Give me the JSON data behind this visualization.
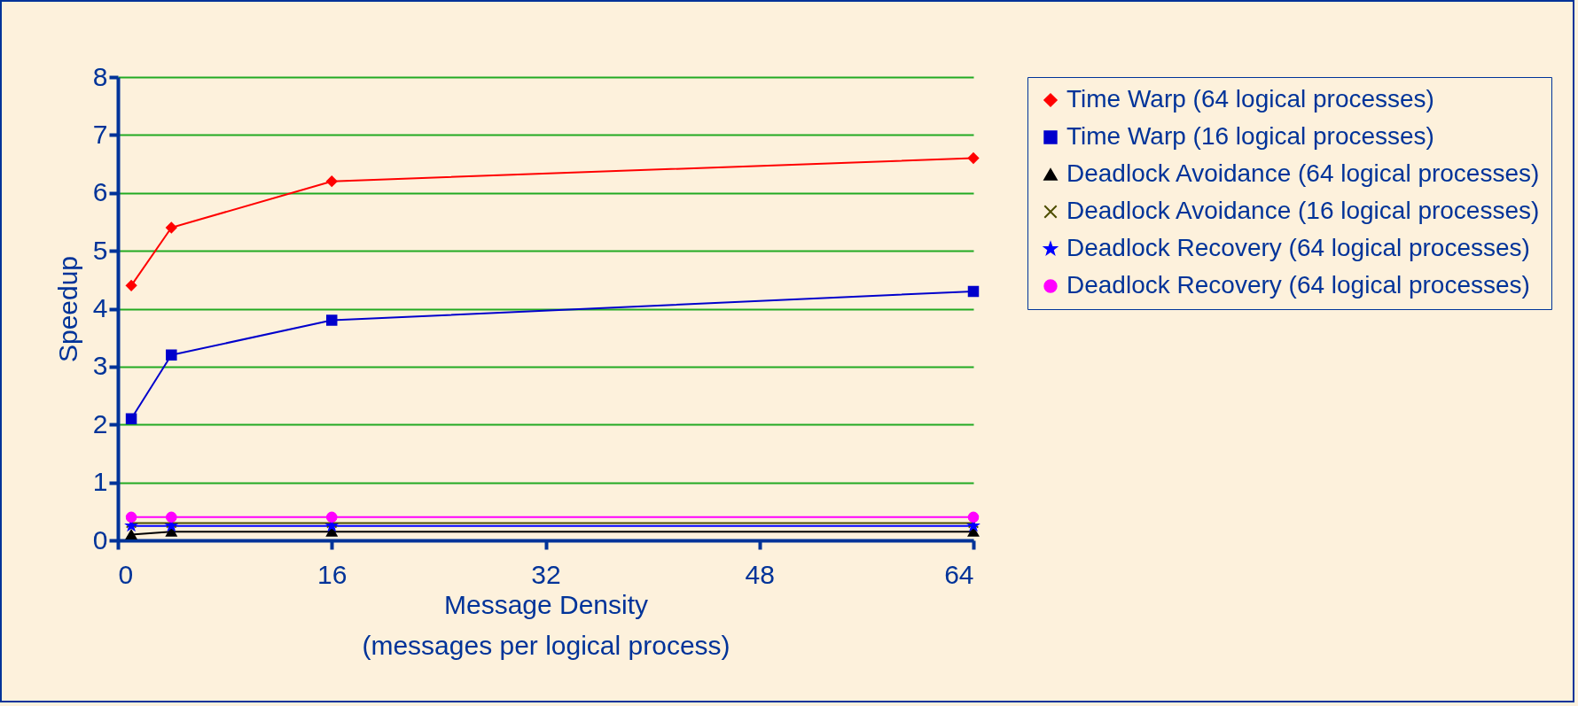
{
  "chart_data": {
    "type": "line",
    "xlabel": "Message Density\n(messages per logical process)",
    "ylabel": "Speedup",
    "x": [
      1,
      4,
      16,
      64
    ],
    "xlim": [
      0,
      64
    ],
    "xticks": [
      0,
      16,
      32,
      48,
      64
    ],
    "ylim": [
      0,
      8
    ],
    "yticks": [
      0,
      1,
      2,
      3,
      4,
      5,
      6,
      7,
      8
    ],
    "grid": "y",
    "legend": "right",
    "line_style": "solid",
    "series": [
      {
        "name": "Time Warp (64 logical processes)",
        "color": "#ff0000",
        "marker": "diamond",
        "values": [
          4.4,
          5.4,
          6.2,
          6.6
        ]
      },
      {
        "name": "Time Warp (16 logical processes)",
        "color": "#0000cc",
        "marker": "square",
        "values": [
          2.1,
          3.2,
          3.8,
          4.3
        ]
      },
      {
        "name": "Deadlock Avoidance (64 logical processes)",
        "color": "#000000",
        "marker": "triangle",
        "values": [
          0.1,
          0.15,
          0.15,
          0.15
        ]
      },
      {
        "name": "Deadlock Avoidance (16 logical processes)",
        "color": "#4d4d00",
        "marker": "cross",
        "values": [
          0.3,
          0.3,
          0.3,
          0.3
        ]
      },
      {
        "name": "Deadlock Recovery (64 logical processes)",
        "color": "#0000ff",
        "marker": "star",
        "values": [
          0.25,
          0.25,
          0.25,
          0.25
        ]
      },
      {
        "name": "Deadlock Recovery (64 logical processes)",
        "color": "#ff00ff",
        "marker": "circle",
        "values": [
          0.4,
          0.4,
          0.4,
          0.4
        ]
      }
    ]
  }
}
